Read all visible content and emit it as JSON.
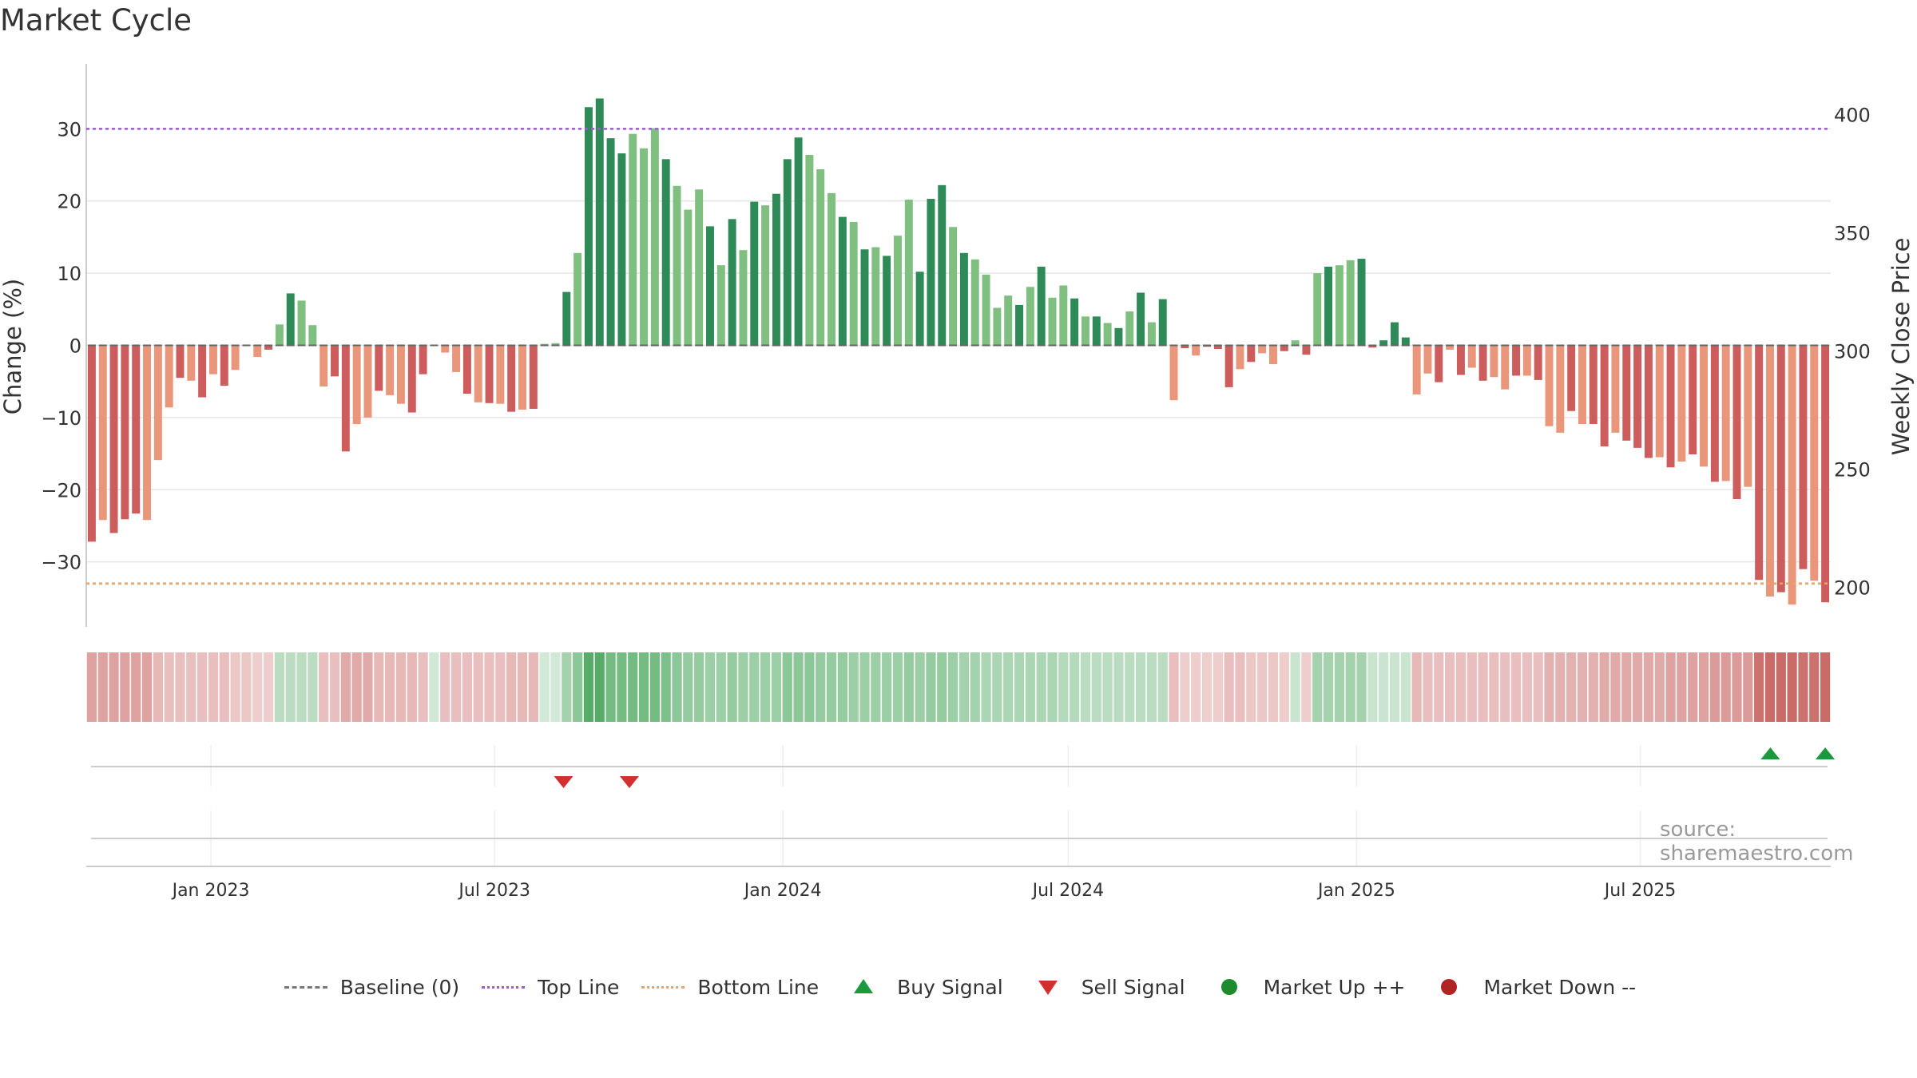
{
  "title": "Market Cycle",
  "source": "source: sharemaestro.com",
  "legend": {
    "baseline": "Baseline (0)",
    "top_line": "Top Line",
    "bottom_line": "Bottom Line",
    "buy_signal": "Buy Signal",
    "sell_signal": "Sell Signal",
    "market_up": "Market Up ++",
    "market_down": "Market Down --"
  },
  "colors": {
    "positive_dark": "#2e8b57",
    "positive_light": "#7fbf7f",
    "negative_dark": "#cd5c5c",
    "negative_light": "#e9967a",
    "top_line": "#9b59d6",
    "bottom_line": "#f0a060",
    "buy": "#1a9a3c",
    "sell": "#d32f2f",
    "market_up": "#1e8a2e",
    "market_down": "#b02424"
  },
  "chart_data": {
    "type": "bar",
    "y_axis_label": "Change (%)",
    "y2_axis_label": "Weekly Close Price",
    "ylim": [
      -39,
      39
    ],
    "yticks": [
      30,
      20,
      10,
      0,
      -10,
      -20,
      -30
    ],
    "ytick_labels": [
      "30",
      "20",
      "10",
      "0",
      "−10",
      "−20",
      "−30"
    ],
    "y2ticks": [
      400,
      350,
      300,
      250,
      200
    ],
    "y2_at_y": [
      {
        "price": 400,
        "y": 32
      },
      {
        "price": 200,
        "y": -33.5
      }
    ],
    "top_line": 30,
    "bottom_line": -33,
    "baseline": 0,
    "x_start": "2022-10-17",
    "x_end": "2025-10-27",
    "x_tick_dates": [
      "2023-01-01",
      "2023-07-01",
      "2024-01-01",
      "2024-07-01",
      "2025-01-01",
      "2025-07-01"
    ],
    "x_tick_labels": [
      "Jan 2023",
      "Jul 2023",
      "Jan 2024",
      "Jul 2024",
      "Jan 2025",
      "Jul 2025"
    ],
    "values": [
      -27.2,
      -24.2,
      -26,
      -24.1,
      -23.3,
      -24.2,
      -15.9,
      -8.6,
      -4.5,
      -4.9,
      -7.2,
      -4,
      -5.6,
      -3.4,
      0.1,
      -1.6,
      -0.6,
      2.9,
      7.2,
      6.2,
      2.8,
      -5.7,
      -4.3,
      -14.7,
      -10.9,
      -10,
      -6.3,
      -6.9,
      -8.1,
      -9.3,
      -4,
      0.1,
      -1,
      -3.7,
      -6.7,
      -7.9,
      -8,
      -8.1,
      -9.2,
      -8.9,
      -8.8,
      0.2,
      0.3,
      7.4,
      12.8,
      33,
      34.2,
      28.7,
      26.6,
      29.3,
      27.3,
      30.1,
      25.8,
      22.1,
      18.8,
      21.6,
      16.5,
      11.1,
      17.5,
      13.2,
      19.9,
      19.4,
      21,
      25.8,
      28.8,
      26.4,
      24.4,
      21.1,
      17.8,
      17.1,
      13.3,
      13.6,
      12.4,
      15.2,
      20.2,
      10.2,
      20.3,
      22.2,
      16.4,
      12.8,
      11.9,
      9.8,
      5.2,
      6.9,
      5.6,
      8.1,
      10.9,
      6.6,
      8.3,
      6.5,
      4,
      4,
      3.1,
      2.4,
      4.7,
      7.3,
      3.2,
      6.4,
      -7.6,
      -0.4,
      -1.4,
      -0.2,
      -0.5,
      -5.8,
      -3.3,
      -2.3,
      -1.1,
      -2.6,
      -0.8,
      0.7,
      -1.3,
      10,
      10.9,
      11.1,
      11.8,
      12,
      -0.3,
      0.7,
      3.2,
      1.1,
      -6.8,
      -3.9,
      -5.1,
      -0.6,
      -4.1,
      -3.1,
      -4.9,
      -4.4,
      -6.1,
      -4.2,
      -4.2,
      -4.8,
      -11.2,
      -12.1,
      -9.1,
      -10.9,
      -10.9,
      -14,
      -12.1,
      -13.2,
      -14.2,
      -15.6,
      -15.5,
      -16.9,
      -16.1,
      -15.1,
      -16.8,
      -18.9,
      -18.8,
      -21.3,
      -19.6,
      -32.5,
      -34.8,
      -34.2,
      -35.9,
      -31,
      -32.6,
      -35.6
    ],
    "bar_shade": "dldddllldldldldldldlllddlldlldddlldldldldlldlddddllldllldldldldddllldldldlldddldlllldldlldldldldldldldddldlldldldlldddddlldldldlldldlldlddldddldldldldldldldldddldld",
    "heat_strip": [
      -0.5,
      -0.5,
      -0.5,
      -0.5,
      -0.5,
      -0.5,
      -0.35,
      -0.3,
      -0.3,
      -0.3,
      -0.3,
      -0.3,
      -0.3,
      -0.25,
      -0.25,
      -0.2,
      -0.2,
      0.3,
      0.3,
      0.3,
      0.3,
      -0.3,
      -0.3,
      -0.45,
      -0.45,
      -0.45,
      -0.35,
      -0.35,
      -0.35,
      -0.35,
      -0.3,
      0.15,
      -0.3,
      -0.3,
      -0.3,
      -0.3,
      -0.3,
      -0.3,
      -0.35,
      -0.35,
      -0.35,
      0.15,
      0.15,
      0.45,
      0.6,
      0.95,
      0.95,
      0.75,
      0.75,
      0.75,
      0.75,
      0.75,
      0.7,
      0.6,
      0.55,
      0.55,
      0.5,
      0.5,
      0.55,
      0.5,
      0.5,
      0.5,
      0.5,
      0.6,
      0.6,
      0.6,
      0.55,
      0.55,
      0.55,
      0.5,
      0.5,
      0.5,
      0.5,
      0.5,
      0.55,
      0.5,
      0.55,
      0.55,
      0.5,
      0.45,
      0.45,
      0.4,
      0.4,
      0.4,
      0.4,
      0.4,
      0.4,
      0.4,
      0.35,
      0.35,
      0.3,
      0.3,
      0.3,
      0.3,
      0.3,
      0.3,
      0.3,
      0.3,
      -0.3,
      -0.2,
      -0.2,
      -0.2,
      -0.2,
      -0.3,
      -0.3,
      -0.25,
      -0.25,
      -0.25,
      -0.2,
      0.2,
      -0.2,
      0.45,
      0.45,
      0.45,
      0.45,
      0.45,
      0.2,
      0.2,
      0.2,
      0.2,
      -0.35,
      -0.3,
      -0.3,
      -0.3,
      -0.3,
      -0.3,
      -0.3,
      -0.3,
      -0.3,
      -0.3,
      -0.3,
      -0.3,
      -0.4,
      -0.4,
      -0.4,
      -0.4,
      -0.4,
      -0.45,
      -0.45,
      -0.45,
      -0.45,
      -0.45,
      -0.45,
      -0.5,
      -0.5,
      -0.5,
      -0.5,
      -0.55,
      -0.55,
      -0.55,
      -0.55,
      -0.85,
      -0.9,
      -0.9,
      -0.9,
      -0.85,
      -0.85,
      -0.9
    ],
    "buy_signals": [
      "2025-09-22",
      "2025-10-27"
    ],
    "sell_signals": [
      "2023-08-14",
      "2023-09-25"
    ]
  }
}
